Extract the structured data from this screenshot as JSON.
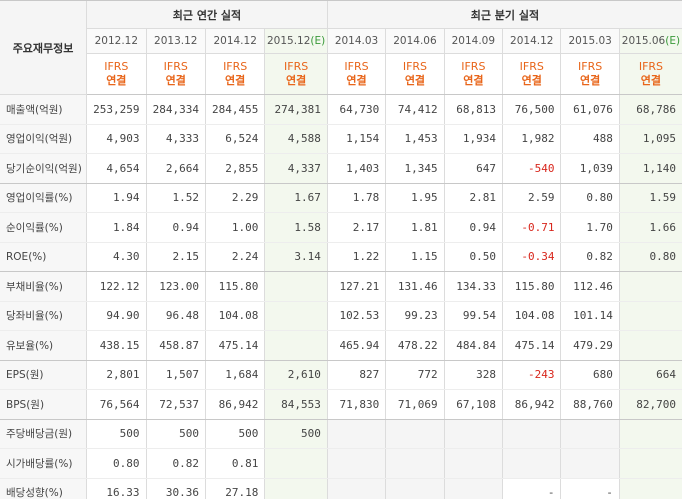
{
  "header": {
    "row_label": "주요재무정보",
    "annual_group": "최근 연간 실적",
    "quarter_group": "최근 분기 실적",
    "annual_periods": [
      "2012.12",
      "2013.12",
      "2014.12"
    ],
    "annual_estimate": "2015.12",
    "estimate_mark": "(E)",
    "quarter_periods": [
      "2014.03",
      "2014.06",
      "2014.09",
      "2014.12",
      "2015.03"
    ],
    "quarter_estimate": "2015.06",
    "ifrs_label": "IFRS",
    "basis_label": "연결"
  },
  "rows": [
    {
      "label": "매출액(억원)",
      "annual": [
        "253,259",
        "284,334",
        "284,455",
        "274,381"
      ],
      "quarter": [
        "64,730",
        "74,412",
        "68,813",
        "76,500",
        "61,076",
        "68,786"
      ]
    },
    {
      "label": "영업이익(억원)",
      "annual": [
        "4,903",
        "4,333",
        "6,524",
        "4,588"
      ],
      "quarter": [
        "1,154",
        "1,453",
        "1,934",
        "1,982",
        "488",
        "1,095"
      ]
    },
    {
      "label": "당기순이익(억원)",
      "annual": [
        "4,654",
        "2,664",
        "2,855",
        "4,337"
      ],
      "quarter": [
        "1,403",
        "1,345",
        "647",
        "-540",
        "1,039",
        "1,140"
      ]
    },
    {
      "label": "영업이익률(%)",
      "annual": [
        "1.94",
        "1.52",
        "2.29",
        "1.67"
      ],
      "quarter": [
        "1.78",
        "1.95",
        "2.81",
        "2.59",
        "0.80",
        "1.59"
      ]
    },
    {
      "label": "순이익률(%)",
      "annual": [
        "1.84",
        "0.94",
        "1.00",
        "1.58"
      ],
      "quarter": [
        "2.17",
        "1.81",
        "0.94",
        "-0.71",
        "1.70",
        "1.66"
      ]
    },
    {
      "label": "ROE(%)",
      "annual": [
        "4.30",
        "2.15",
        "2.24",
        "3.14"
      ],
      "quarter": [
        "1.22",
        "1.15",
        "0.50",
        "-0.34",
        "0.82",
        "0.80"
      ]
    },
    {
      "label": "부채비율(%)",
      "annual": [
        "122.12",
        "123.00",
        "115.80",
        ""
      ],
      "quarter": [
        "127.21",
        "131.46",
        "134.33",
        "115.80",
        "112.46",
        ""
      ]
    },
    {
      "label": "당좌비율(%)",
      "annual": [
        "94.90",
        "96.48",
        "104.08",
        ""
      ],
      "quarter": [
        "102.53",
        "99.23",
        "99.54",
        "104.08",
        "101.14",
        ""
      ]
    },
    {
      "label": "유보율(%)",
      "annual": [
        "438.15",
        "458.87",
        "475.14",
        ""
      ],
      "quarter": [
        "465.94",
        "478.22",
        "484.84",
        "475.14",
        "479.29",
        ""
      ]
    },
    {
      "label": "EPS(원)",
      "annual": [
        "2,801",
        "1,507",
        "1,684",
        "2,610"
      ],
      "quarter": [
        "827",
        "772",
        "328",
        "-243",
        "680",
        "664"
      ]
    },
    {
      "label": "BPS(원)",
      "annual": [
        "76,564",
        "72,537",
        "86,942",
        "84,553"
      ],
      "quarter": [
        "71,830",
        "71,069",
        "67,108",
        "86,942",
        "88,760",
        "82,700"
      ]
    },
    {
      "label": "주당배당금(원)",
      "annual": [
        "500",
        "500",
        "500",
        "500"
      ],
      "quarter": [
        "",
        "",
        "",
        "",
        "",
        ""
      ]
    },
    {
      "label": "시가배당률(%)",
      "annual": [
        "0.80",
        "0.82",
        "0.81",
        ""
      ],
      "quarter": [
        "",
        "",
        "",
        "",
        "",
        ""
      ]
    },
    {
      "label": "배당성향(%)",
      "annual": [
        "16.33",
        "30.36",
        "27.18",
        ""
      ],
      "quarter": [
        "",
        "",
        "",
        "-",
        "-",
        ""
      ]
    }
  ]
}
